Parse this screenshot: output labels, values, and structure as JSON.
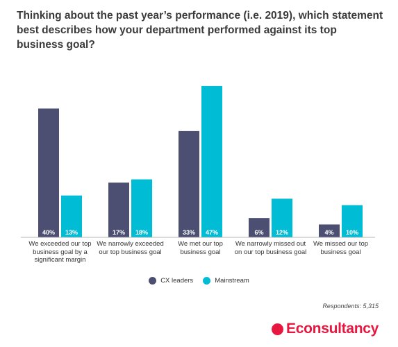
{
  "title": "Thinking about the past year’s performance (i.e. 2019), which statement best describes how your department performed against its top business goal?",
  "respondents": "Respondents: 5,315",
  "brand": {
    "name": "Econsultancy",
    "color": "#e8173f"
  },
  "chart_data": {
    "type": "bar",
    "categories": [
      "We exceeded our top business goal by a significant margin",
      "We narrowly exceeded our top business goal",
      "We met our top business goal",
      "We narrowly missed out on our top business goal",
      "We missed our top business goal"
    ],
    "series": [
      {
        "name": "CX leaders",
        "color": "#4c4f72",
        "values": [
          40,
          17,
          33,
          6,
          4
        ],
        "labels": [
          "40%",
          "17%",
          "33%",
          "6%",
          "4%"
        ]
      },
      {
        "name": "Mainstream",
        "color": "#00bcd4",
        "values": [
          13,
          18,
          47,
          12,
          10
        ],
        "labels": [
          "13%",
          "18%",
          "47%",
          "12%",
          "10%"
        ]
      }
    ],
    "ylim": [
      0,
      50
    ],
    "grid": false,
    "legend_position": "bottom"
  }
}
